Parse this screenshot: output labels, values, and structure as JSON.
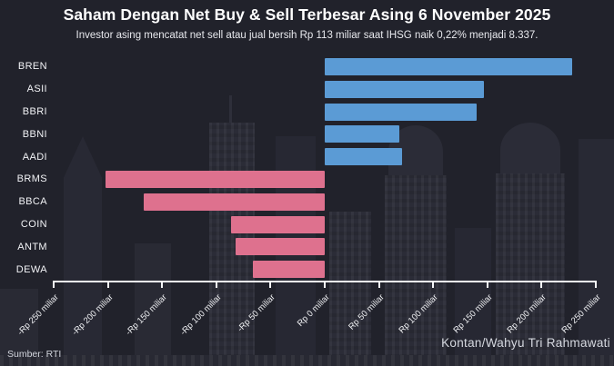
{
  "header": {
    "title": "Saham Dengan Net Buy & Sell Terbesar Asing 6 November 2025",
    "subtitle": "Investor asing mencatat net sell atau jual bersih Rp 113 miliar saat IHSG naik 0,22% menjadi 8.337."
  },
  "footer": {
    "source": "Sumber: RTI",
    "credit": "Kontan/Wahyu Tri Rahmawati"
  },
  "colors": {
    "background": "#21222b",
    "positive": "#5b9bd5",
    "negative": "#de718e",
    "axis": "#f5f6f8"
  },
  "chart_data": {
    "type": "bar",
    "orientation": "horizontal",
    "title": "Saham Dengan Net Buy & Sell Terbesar Asing 6 November 2025",
    "subtitle": "Investor asing mencatat net sell atau jual bersih Rp 113 miliar saat IHSG naik 0,22% menjadi 8.337.",
    "unit": "Rp miliar",
    "categories": [
      "BREN",
      "ASII",
      "BBRI",
      "BBNI",
      "AADI",
      "BRMS",
      "BBCA",
      "COIN",
      "ANTM",
      "DEWA"
    ],
    "values": [
      228,
      147,
      140,
      69,
      71,
      -202,
      -167,
      -86,
      -82,
      -66
    ],
    "positive_color": "#5b9bd5",
    "negative_color": "#de718e",
    "xlim": [
      -250,
      250
    ],
    "x_tick_values": [
      -250,
      -200,
      -150,
      -100,
      -50,
      0,
      50,
      100,
      150,
      200,
      250
    ],
    "x_tick_labels": [
      "-Rp 250 miliar",
      "-Rp 200 miliar",
      "-Rp 150 miliar",
      "-Rp 100 miliar",
      "-Rp 50 miliar",
      "Rp 0 miliar",
      "Rp 50 miliar",
      "Rp 100 miliar",
      "Rp 150 miliar",
      "Rp 200 miliar",
      "Rp 250 miliar"
    ],
    "grid": false,
    "legend": "none"
  }
}
